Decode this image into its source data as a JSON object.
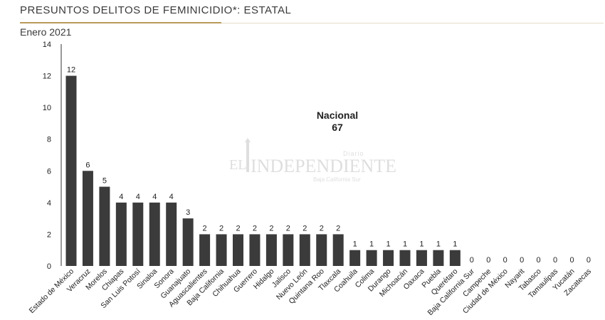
{
  "header": {
    "title": "PRESUNTOS DELITOS DE FEMINICIDIO*: ESTATAL",
    "subtitle": "Enero 2021"
  },
  "annotation": {
    "label": "Nacional",
    "value": "67"
  },
  "watermark": {
    "prefix": "EL",
    "name": "INDEPENDIENTE",
    "tag": "Diario",
    "region": "Baja California Sur"
  },
  "colors": {
    "bar": "#3b3b3b",
    "axis": "#333333",
    "text": "#222222",
    "accent": "#b89a5a"
  },
  "chart_data": {
    "type": "bar",
    "title": "PRESUNTOS DELITOS DE FEMINICIDIO*: ESTATAL",
    "subtitle": "Enero 2021",
    "xlabel": "",
    "ylabel": "",
    "ylim": [
      0,
      14
    ],
    "yticks": [
      0,
      2,
      4,
      6,
      8,
      10,
      12,
      14
    ],
    "grid": false,
    "categories": [
      "Estado de México",
      "Veracruz",
      "Morelos",
      "Chiapas",
      "San Luis Potosí",
      "Sinaloa",
      "Sonora",
      "Guanajuato",
      "Aguascalientes",
      "Baja California",
      "Chihuahua",
      "Guerrero",
      "Hidalgo",
      "Jalisco",
      "Nuevo León",
      "Quintana Roo",
      "Tlaxcala",
      "Coahuila",
      "Colima",
      "Durango",
      "Michoacán",
      "Oaxaca",
      "Puebla",
      "Querétaro",
      "Baja California Sur",
      "Campeche",
      "Ciudad de México",
      "Nayarit",
      "Tabasco",
      "Tamaulipas",
      "Yucatán",
      "Zacatecas"
    ],
    "values": [
      12,
      6,
      5,
      4,
      4,
      4,
      4,
      3,
      2,
      2,
      2,
      2,
      2,
      2,
      2,
      2,
      2,
      1,
      1,
      1,
      1,
      1,
      1,
      1,
      0,
      0,
      0,
      0,
      0,
      0,
      0,
      0
    ]
  }
}
